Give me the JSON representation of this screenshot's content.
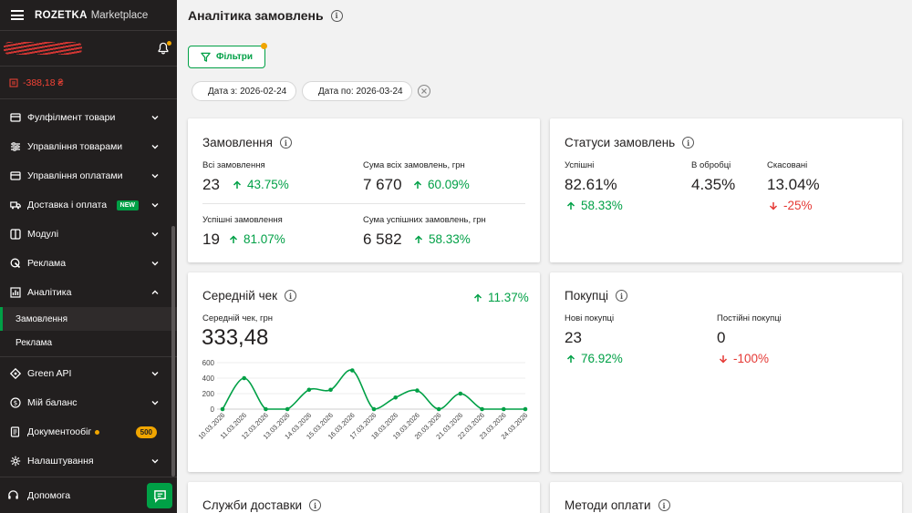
{
  "sidebar": {
    "brand": "ROZETKA",
    "brand_sub": "Marketplace",
    "balance": "-388,18 ₴",
    "items": [
      {
        "label": "Фулфілмент товари",
        "icon": "box-icon",
        "expanded": false
      },
      {
        "label": "Управління товарами",
        "icon": "sliders-icon",
        "expanded": false
      },
      {
        "label": "Управління оплатами",
        "icon": "card-icon",
        "expanded": false
      },
      {
        "label": "Доставка і оплата",
        "icon": "truck-icon",
        "expanded": false,
        "badge": "NEW"
      },
      {
        "label": "Модулі",
        "icon": "modules-icon",
        "expanded": false
      },
      {
        "label": "Реклама",
        "icon": "ads-icon",
        "expanded": false
      },
      {
        "label": "Аналітика",
        "icon": "analytics-icon",
        "expanded": true
      }
    ],
    "sub_items": [
      {
        "label": "Замовлення",
        "active": true
      },
      {
        "label": "Реклама",
        "active": false
      }
    ],
    "items2": [
      {
        "label": "Green API",
        "icon": "api-icon"
      },
      {
        "label": "Мій баланс",
        "icon": "dollar-icon"
      },
      {
        "label": "Документообіг",
        "icon": "document-icon",
        "count": "500"
      },
      {
        "label": "Налаштування",
        "icon": "gear-icon"
      }
    ],
    "help": "Допомога"
  },
  "main": {
    "title": "Аналітика замовлень",
    "filters_label": "Фільтри",
    "date_from": "Дата з: 2026-02-24",
    "date_to": "Дата по: 2026-03-24"
  },
  "orders": {
    "title": "Замовлення",
    "all_label": "Всі замовлення",
    "all_value": "23",
    "all_change": "43.75%",
    "sum_all_label": "Сума всіх замовлень, грн",
    "sum_all_value": "7 670",
    "sum_all_change": "60.09%",
    "success_label": "Успішні замовлення",
    "success_value": "19",
    "success_change": "81.07%",
    "sum_success_label": "Сума успішних замовлень, грн",
    "sum_success_value": "6 582",
    "sum_success_change": "58.33%"
  },
  "statuses": {
    "title": "Статуси замовлень",
    "success_label": "Успішні",
    "success_value": "82.61%",
    "success_change": "58.33%",
    "processing_label": "В обробці",
    "processing_value": "4.35%",
    "canceled_label": "Скасовані",
    "canceled_value": "13.04%",
    "canceled_change": "-25%"
  },
  "avg_check": {
    "title": "Середній чек",
    "change": "11.37%",
    "label": "Середній чек, грн",
    "value": "333,48"
  },
  "purchases": {
    "title": "Покупці",
    "new_label": "Нові покупці",
    "new_value": "23",
    "new_change": "76.92%",
    "regular_label": "Постійні покупці",
    "regular_value": "0",
    "regular_change": "-100%"
  },
  "bottom": {
    "delivery_title": "Служби доставки",
    "payment_title": "Методи оплати"
  },
  "colors": {
    "accent": "#00a046",
    "danger": "#e53935",
    "sidebar": "#221f1f",
    "badge": "#f0a500"
  },
  "chart_data": {
    "type": "line",
    "x": [
      "10.03.2026",
      "11.03.2026",
      "12.03.2026",
      "13.03.2026",
      "14.03.2026",
      "15.03.2026",
      "16.03.2026",
      "17.03.2026",
      "18.03.2026",
      "19.03.2026",
      "20.03.2026",
      "21.03.2026",
      "22.03.2026",
      "23.03.2026",
      "24.03.2026"
    ],
    "values": [
      0,
      400,
      0,
      0,
      250,
      250,
      500,
      0,
      150,
      240,
      0,
      200,
      0,
      0,
      0
    ],
    "yticks": [
      0,
      200,
      400,
      600
    ],
    "ylim": [
      0,
      600
    ],
    "grid": true
  }
}
